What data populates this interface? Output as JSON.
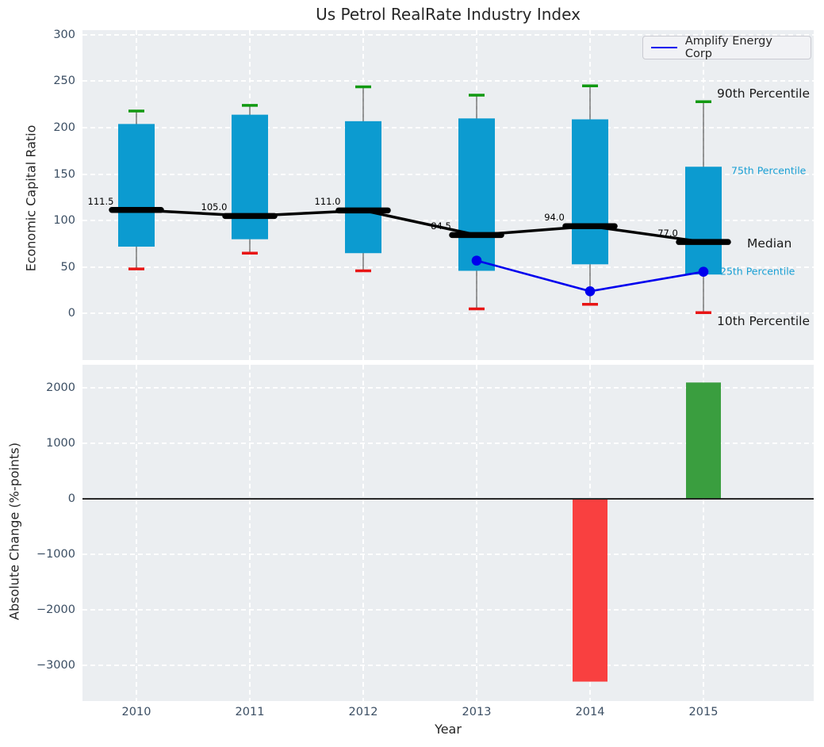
{
  "title": "Us Petrol RealRate Industry Index",
  "legend": {
    "label": "Amplify Energy Corp"
  },
  "colors": {
    "axes_background": "#ebeef1",
    "box_fill": "#0c9bd0",
    "whisker_line": "#555555",
    "cap_90th": "#119911",
    "cap_10th": "#e81414",
    "median_line": "#000000",
    "company_line": "#0000ee",
    "bar_negative": "#f94040",
    "bar_positive": "#3a9e3f",
    "annotation_small_text": "#189fd4",
    "tick_text": "#3b4e63"
  },
  "chart_data": [
    {
      "type": "box-percentile",
      "title": "Us Petrol RealRate Industry Index",
      "ylabel": "Economic Capital Ratio",
      "ylim": [
        -50,
        305
      ],
      "yticks": [
        0,
        50,
        100,
        150,
        200,
        250,
        300
      ],
      "grid": true,
      "categories": [
        "2010",
        "2011",
        "2012",
        "2013",
        "2014",
        "2015"
      ],
      "series": [
        {
          "name": "90th Percentile",
          "values": [
            218,
            224,
            244,
            235,
            245,
            228
          ]
        },
        {
          "name": "75th Percentile",
          "values": [
            204,
            214,
            207,
            210,
            209,
            158
          ]
        },
        {
          "name": "Median",
          "values": [
            111.5,
            105.0,
            111.0,
            84.5,
            94.0,
            77.0
          ]
        },
        {
          "name": "25th Percentile",
          "values": [
            72,
            80,
            65,
            46,
            53,
            42
          ]
        },
        {
          "name": "10th Percentile",
          "values": [
            48,
            65,
            46,
            5,
            10,
            1
          ]
        }
      ],
      "median_point_labels": [
        "111.5",
        "105.0",
        "111.0",
        "84.5",
        "94.0",
        "77.0"
      ],
      "company_line": {
        "name": "Amplify Energy Corp",
        "categories": [
          "2013",
          "2014",
          "2015"
        ],
        "values": [
          57,
          24,
          45
        ]
      },
      "annotations": [
        {
          "label": "90th Percentile",
          "value": 228,
          "style": "large"
        },
        {
          "label": "75th Percentile",
          "value": 158,
          "style": "small"
        },
        {
          "label": "Median",
          "value": 77,
          "style": "large"
        },
        {
          "label": "25th Percentile",
          "value": 42,
          "style": "small"
        },
        {
          "label": "10th Percentile",
          "value": 1,
          "style": "large"
        }
      ],
      "legend": {
        "entries": [
          "Amplify Energy Corp"
        ],
        "position": "upper right"
      }
    },
    {
      "type": "bar",
      "ylabel": "Absolute Change (%-points)",
      "xlabel": "Year",
      "ylim": [
        -3650,
        2420
      ],
      "yticks": [
        -3000,
        -2000,
        -1000,
        0,
        1000,
        2000
      ],
      "grid": true,
      "categories": [
        "2010",
        "2011",
        "2012",
        "2013",
        "2014",
        "2015"
      ],
      "values": [
        null,
        null,
        null,
        null,
        -3300,
        2100
      ],
      "zero_line": true
    }
  ]
}
